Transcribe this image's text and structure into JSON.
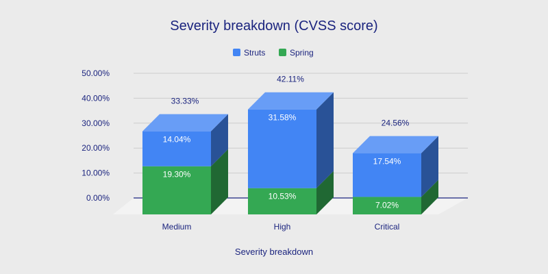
{
  "chart_data": {
    "type": "bar",
    "stacked": true,
    "three_d": true,
    "title": "Severity breakdown (CVSS score)",
    "xlabel": "Severity breakdown",
    "ylabel": "",
    "ylim": [
      0,
      50
    ],
    "y_ticks": [
      "0.00%",
      "10.00%",
      "20.00%",
      "30.00%",
      "40.00%",
      "50.00%"
    ],
    "grid": true,
    "legend_position": "top",
    "categories": [
      "Medium",
      "High",
      "Critical"
    ],
    "series": [
      {
        "name": "Spring",
        "values": [
          19.3,
          10.53,
          7.02
        ],
        "labels": [
          "19.30%",
          "10.53%",
          "7.02%"
        ],
        "color": "#34a853"
      },
      {
        "name": "Struts",
        "values": [
          14.04,
          31.58,
          17.54
        ],
        "labels": [
          "14.04%",
          "31.58%",
          "17.54%"
        ],
        "color": "#4285f4"
      }
    ],
    "legend_order": [
      "Struts",
      "Spring"
    ],
    "totals": [
      "33.33%",
      "42.11%",
      "24.56%"
    ]
  }
}
